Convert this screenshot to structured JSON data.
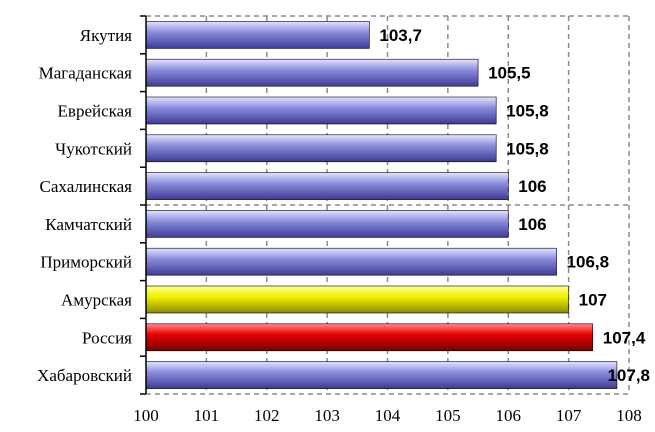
{
  "chart_data": {
    "type": "bar",
    "orientation": "horizontal",
    "categories": [
      "Якутия",
      "Магаданская",
      "Еврейская",
      "Чукотский",
      "Сахалинская",
      "Камчатский",
      "Приморский",
      "Амурская",
      "Россия",
      "Хабаровский"
    ],
    "values": [
      103.7,
      105.5,
      105.8,
      105.8,
      106,
      106,
      106.8,
      107,
      107.4,
      107.8
    ],
    "value_labels": [
      "103,7",
      "105,5",
      "105,8",
      "105,8",
      "106",
      "106",
      "106,8",
      "107",
      "107,4",
      "107,8"
    ],
    "bar_colors": [
      "blue",
      "blue",
      "blue",
      "blue",
      "blue",
      "blue",
      "blue",
      "yellow",
      "red",
      "blue"
    ],
    "xlim": [
      100,
      108
    ],
    "xticks": [
      100,
      101,
      102,
      103,
      104,
      105,
      106,
      107,
      108
    ],
    "grid": true,
    "title": "",
    "xlabel": "",
    "ylabel": "",
    "colors": {
      "blue": [
        "#e4e4ff",
        "#8c8cdc",
        "#3c3c96"
      ],
      "yellow": [
        "#ffff9c",
        "#f0f000",
        "#8c8c00"
      ],
      "red": [
        "#ff8c8c",
        "#e60000",
        "#780000"
      ]
    }
  }
}
